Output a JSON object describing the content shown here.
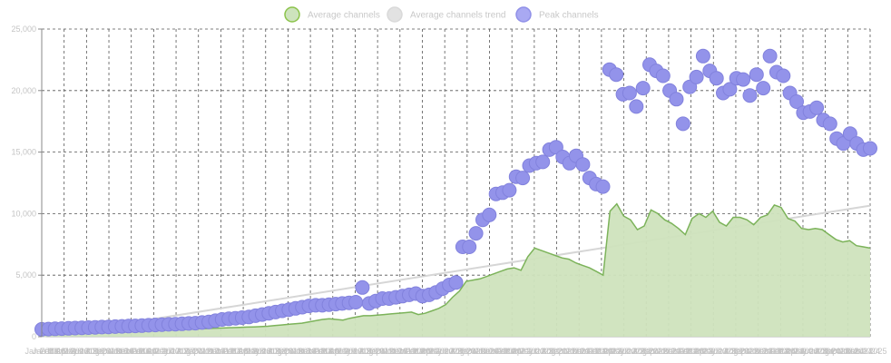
{
  "chart_data": {
    "type": "line",
    "legend": {
      "placement": "top-center",
      "items": [
        {
          "label": "Average channels",
          "color": "#8bc34a",
          "fill": "#cde3bd"
        },
        {
          "label": "Average channels trend",
          "color": "#d9d9d9",
          "fill": "#e2e2e2"
        },
        {
          "label": "Peak channels",
          "color": "#9090e8",
          "fill": "#a9a9f2"
        }
      ]
    },
    "y_ticks": [
      "0",
      "5,000",
      "10,000",
      "15,000",
      "20,000",
      "25,000"
    ],
    "ylim": [
      0,
      25000
    ],
    "x_tick_labels": [
      "Jan 2016",
      "Jan 2016",
      "Feb 2016",
      "Mar 2016",
      "Apr 2016",
      "May 2016",
      "Jun 2016",
      "Jul 2016",
      "Aug 2016",
      "Sep 2016",
      "Oct 2016",
      "Nov 2016",
      "Dec 2016",
      "Jan 2017",
      "Feb 2017",
      "Mar 2017",
      "Apr 2017",
      "May 2017",
      "Jun 2017",
      "Jul 2017",
      "Aug 2017",
      "Sep 2017",
      "Oct 2017",
      "Nov 2017",
      "Dec 2017",
      "Jan 2018",
      "Feb 2018",
      "Mar 2018",
      "Apr 2018",
      "May 2018",
      "Jun 2018",
      "Jul 2018",
      "Aug 2018",
      "Sep 2018",
      "Oct 2018",
      "Nov 2018",
      "Dec 2018",
      "Jan 2019",
      "Feb 2019",
      "Mar 2019",
      "Apr 2019",
      "May 2019",
      "Jun 2019",
      "Jul 2019",
      "Aug 2019",
      "Sep 2019",
      "Oct 2019",
      "Nov 2019",
      "Dec 2019",
      "Jan 2020",
      "Feb 2020",
      "Mar 2020",
      "Apr 2020",
      "May 2020",
      "Jun 2020",
      "Jul 2020",
      "Aug 2020",
      "Sep 2020",
      "Oct 2020",
      "Nov 2020",
      "Dec 2020",
      "Jan 2021",
      "Feb 2021",
      "Mar 2021",
      "Apr 2021",
      "May 2021",
      "Jun 2021",
      "Jul 2021",
      "Aug 2021",
      "Sep 2021",
      "Oct 2021",
      "Nov 2021",
      "Dec 2021",
      "Jan 2022",
      "Feb 2022",
      "Mar 2022",
      "Apr 2022",
      "May 2022",
      "Jun 2022",
      "Jul 2022",
      "Aug 2022",
      "Sep 2022",
      "Oct 2022",
      "Nov 2022",
      "Dec 2022",
      "Jan 2023",
      "Feb 2023",
      "Mar 2023",
      "Apr 2023",
      "May 2023",
      "Jun 2023",
      "Jul 2023",
      "Aug 2023",
      "Sep 2023",
      "Oct 2023",
      "Nov 2023",
      "Dec 2023",
      "Jan 2024",
      "Feb 2024",
      "Mar 2024",
      "Apr 2024",
      "May 2024",
      "Jun 2024",
      "Jul 2024",
      "Aug 2024",
      "Sep 2024",
      "Oct 2024",
      "Nov 2024",
      "Dec 2024",
      "Jan 2025"
    ],
    "grid": true,
    "x_gridline_count": 38,
    "series": [
      {
        "name": "Average channels",
        "style": "area",
        "values": [
          200,
          230,
          260,
          280,
          300,
          320,
          340,
          360,
          380,
          400,
          420,
          440,
          460,
          480,
          500,
          500,
          520,
          520,
          540,
          560,
          580,
          600,
          620,
          640,
          660,
          680,
          700,
          720,
          740,
          760,
          780,
          800,
          820,
          850,
          900,
          950,
          1000,
          1050,
          1100,
          1200,
          1300,
          1400,
          1450,
          1400,
          1350,
          1500,
          1600,
          1700,
          1700,
          1750,
          1800,
          1850,
          1900,
          1950,
          2000,
          1800,
          1900,
          2100,
          2300,
          2600,
          3200,
          3700,
          4500,
          4600,
          4700,
          4900,
          5100,
          5300,
          5500,
          5600,
          5400,
          6500,
          7200,
          7000,
          6800,
          6600,
          6400,
          6300,
          6000,
          5800,
          5600,
          5300,
          5000,
          10200,
          10800,
          9800,
          9500,
          8700,
          9000,
          10300,
          10000,
          9500,
          9200,
          8800,
          8300,
          9600,
          10000,
          9700,
          10200,
          9300,
          9000,
          9700,
          9700,
          9500,
          9100,
          9700,
          9900,
          10700,
          10500,
          9600,
          9400,
          8800,
          8700,
          8800,
          8700,
          8300,
          7900,
          7700,
          7800,
          7400,
          7300,
          7200
        ]
      },
      {
        "name": "Average channels trend",
        "style": "line",
        "start": 0,
        "end": 10650
      },
      {
        "name": "Peak channels",
        "style": "scatter",
        "values": [
          600,
          620,
          640,
          660,
          680,
          700,
          720,
          740,
          760,
          780,
          800,
          820,
          840,
          860,
          880,
          900,
          930,
          950,
          980,
          1000,
          1020,
          1050,
          1080,
          1100,
          1150,
          1200,
          1300,
          1400,
          1450,
          1500,
          1550,
          1600,
          1700,
          1800,
          1900,
          2000,
          2100,
          2200,
          2300,
          2400,
          2500,
          2550,
          2550,
          2600,
          2650,
          2700,
          2750,
          2800,
          4000,
          2700,
          2900,
          3100,
          3100,
          3200,
          3300,
          3400,
          3500,
          3300,
          3400,
          3600,
          3900,
          4200,
          4400,
          7300,
          7300,
          8400,
          9500,
          9900,
          11600,
          11700,
          11900,
          13000,
          12900,
          13900,
          14100,
          14200,
          15200,
          15400,
          14600,
          14100,
          14700,
          14000,
          12900,
          12400,
          12200,
          21700,
          21300,
          19700,
          19800,
          18700,
          20200,
          22100,
          21600,
          21200,
          20000,
          19300,
          17300,
          20300,
          21100,
          22800,
          21600,
          21000,
          19800,
          20100,
          21000,
          20900,
          19600,
          21300,
          20200,
          22800,
          21500,
          21200,
          19800,
          19100,
          18200,
          18300,
          18600,
          17600,
          17300,
          16100,
          15700,
          16500,
          15700,
          15200,
          15300
        ]
      }
    ]
  }
}
